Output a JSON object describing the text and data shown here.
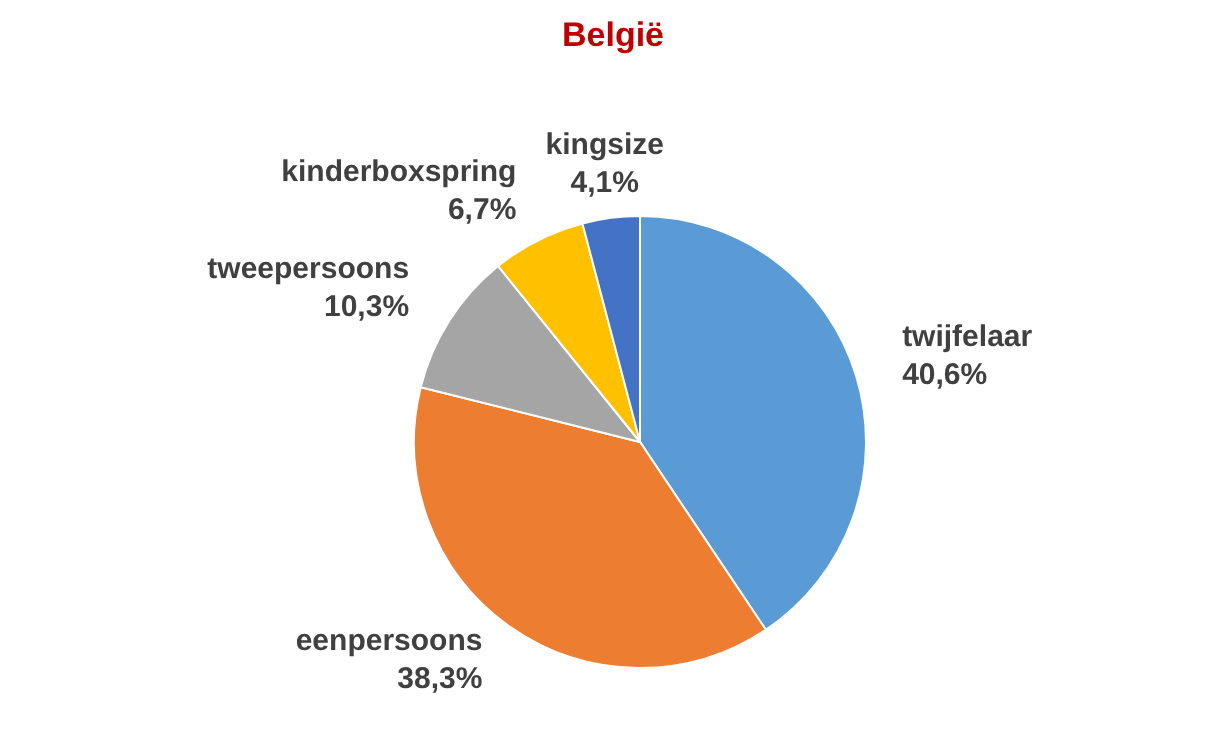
{
  "chart_data": {
    "type": "pie",
    "title": "België",
    "categories": [
      "twijfelaar",
      "eenpersoons",
      "tweepersoons",
      "kinderboxspring",
      "kingsize"
    ],
    "values": [
      40.6,
      38.3,
      10.3,
      6.7,
      4.1
    ],
    "colors": [
      "#5b9bd5",
      "#ed7d31",
      "#a5a5a5",
      "#ffc000",
      "#4472c4"
    ],
    "value_labels": [
      "40,6%",
      "38,3%",
      "10,3%",
      "6,7%",
      "4,1%"
    ]
  }
}
